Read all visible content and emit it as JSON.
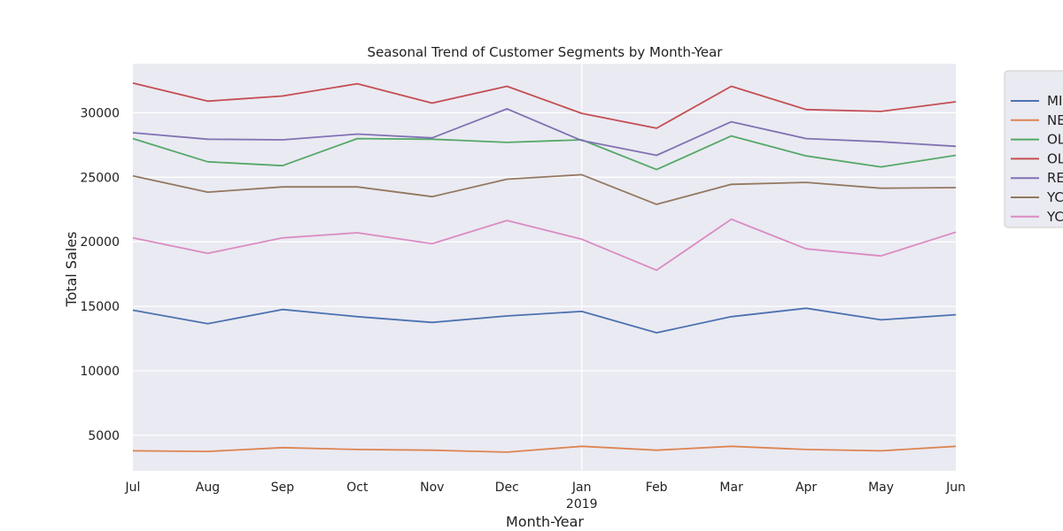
{
  "chart_data": {
    "type": "line",
    "title": "Seasonal Trend of Customer Segments by Month-Year",
    "xlabel": "Month-Year",
    "ylabel": "Total Sales",
    "categories": [
      "Jul",
      "Aug",
      "Sep",
      "Oct",
      "Nov",
      "Dec",
      "Jan",
      "Feb",
      "Mar",
      "Apr",
      "May",
      "Jun"
    ],
    "category_sublabels": [
      "",
      "",
      "",
      "",
      "",
      "",
      "2019",
      "",
      "",
      "",
      "",
      ""
    ],
    "ylim": [
      2250,
      33800
    ],
    "yticks": [
      5000,
      10000,
      15000,
      20000,
      25000,
      30000
    ],
    "grid": true,
    "legend_position": "outside-right",
    "background_color": "#EAEAF2",
    "grid_color": "#FFFFFF",
    "series": [
      {
        "name": "MI",
        "color": "#4C72B0",
        "values": [
          14700,
          13650,
          14750,
          14200,
          13750,
          14250,
          14600,
          12950,
          14200,
          14850,
          13950,
          14350
        ]
      },
      {
        "name": "NE",
        "color": "#DD8452",
        "values": [
          3800,
          3750,
          4050,
          3900,
          3850,
          3700,
          4150,
          3850,
          4150,
          3900,
          3800,
          4150
        ]
      },
      {
        "name": "OL",
        "color": "#55A868",
        "values": [
          28000,
          26200,
          25900,
          28000,
          27950,
          27700,
          27900,
          25600,
          28200,
          26650,
          25800,
          26700
        ]
      },
      {
        "name": "OL",
        "color": "#C44E52",
        "values": [
          32300,
          30900,
          31300,
          32250,
          30750,
          32050,
          29950,
          28800,
          32050,
          30250,
          30100,
          30850
        ]
      },
      {
        "name": "RE",
        "color": "#8172B3",
        "values": [
          28450,
          27950,
          27900,
          28350,
          28050,
          30300,
          27850,
          26700,
          29300,
          28000,
          27750,
          27400
        ]
      },
      {
        "name": "YC",
        "color": "#937860",
        "values": [
          25100,
          23850,
          24250,
          24250,
          23500,
          24850,
          25200,
          22900,
          24450,
          24600,
          24150,
          24200
        ]
      },
      {
        "name": "YC",
        "color": "#DA8BC3",
        "values": [
          20300,
          19100,
          20300,
          20700,
          19850,
          21650,
          20200,
          17800,
          21750,
          19450,
          18900,
          20750
        ]
      }
    ]
  }
}
